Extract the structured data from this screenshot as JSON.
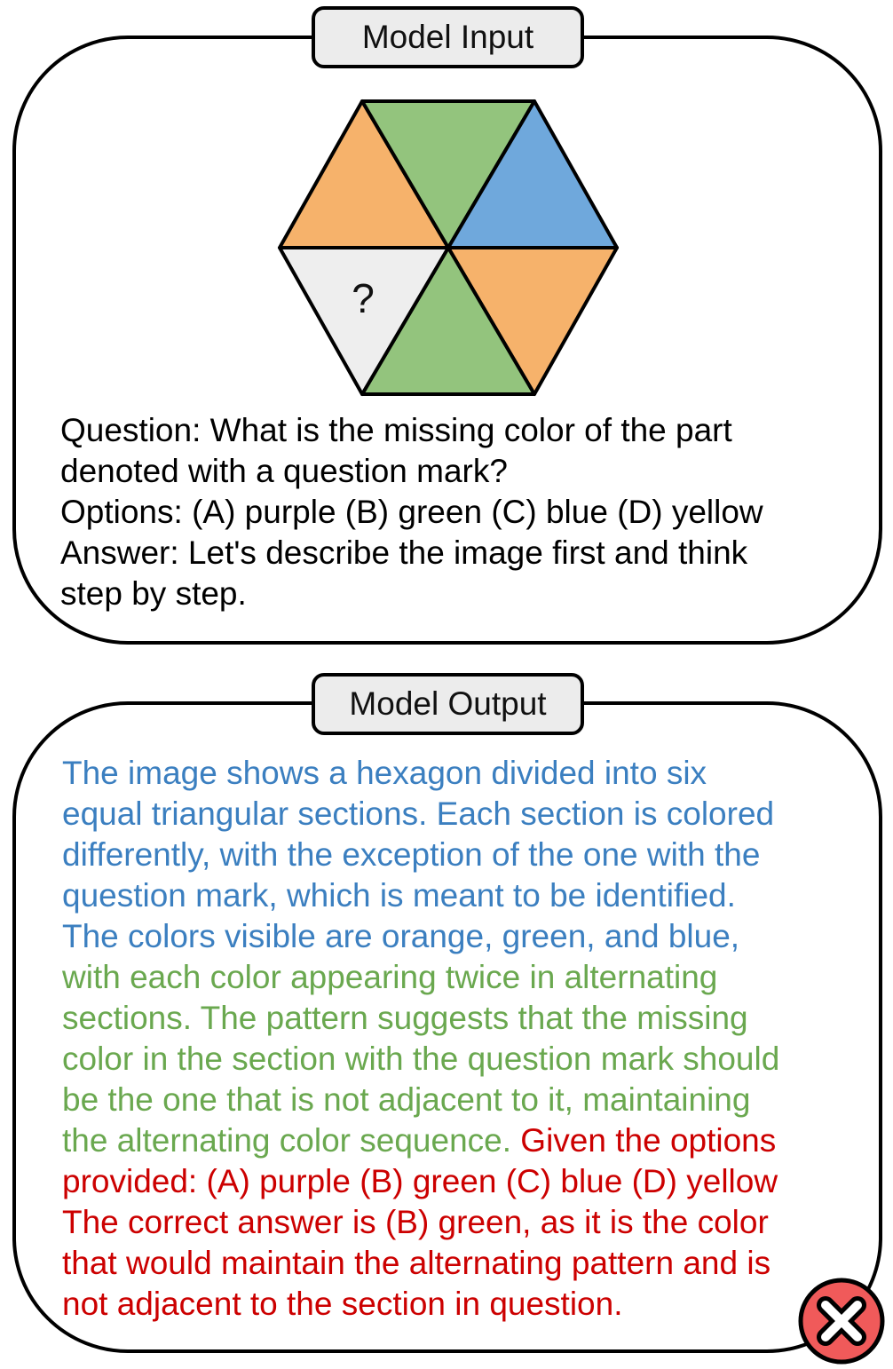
{
  "input_panel": {
    "title": "Model Input",
    "figure": {
      "question_mark": "?",
      "colors": {
        "orange": "#f6b26b",
        "green": "#93c47d",
        "blue": "#6fa8dc",
        "missing": "#eeeeee"
      }
    },
    "lines": [
      "Question: What is the missing color of the part",
      "denoted with a question mark?",
      "Options: (A) purple (B) green (C) blue (D) yellow",
      "Answer: Let's describe the image first and think",
      "step by step."
    ]
  },
  "output_panel": {
    "title": "Model Output",
    "colors": {
      "description": "#3b7fc0",
      "reasoning": "#6aa84f",
      "answer": "#cc0000"
    },
    "lines": [
      "The image shows a hexagon divided into six",
      "equal triangular sections. Each section is colored",
      "differently, with the exception of the one with the",
      "question mark, which is meant to be identified.",
      "The colors visible are orange, green, and blue,",
      "with each color appearing twice in alternating",
      "sections. The pattern suggests that the missing",
      "color in the section with the question mark should",
      "be the one that is not adjacent to it, maintaining",
      "the alternating color sequence.",
      "Given the options",
      "provided: (A) purple (B) green (C) blue (D) yellow",
      "The correct answer is (B) green, as it is the color",
      "that would maintain the alternating pattern and is",
      "not adjacent to the section in question."
    ]
  },
  "status": {
    "icon": "close-icon",
    "color": "#f05a5a"
  }
}
